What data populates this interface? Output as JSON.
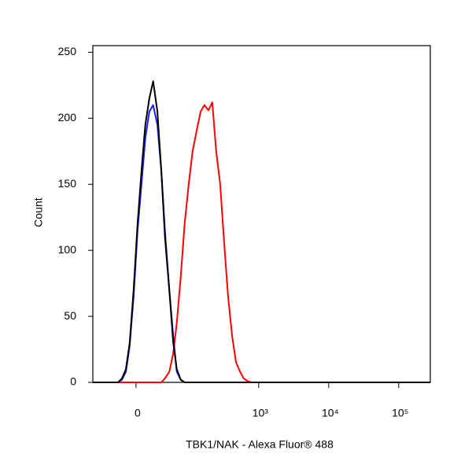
{
  "chart_data": {
    "type": "line",
    "xlabel": "TBK1/NAK - Alexa Fluor® 488",
    "ylabel": "Count",
    "xscale": "biexponential",
    "x": [
      -69,
      -22,
      -17,
      -12,
      -7.4,
      -2.8,
      1.8,
      6.4,
      11,
      16,
      21,
      27,
      33,
      39,
      47,
      55,
      63,
      73,
      84,
      97,
      111,
      127,
      146,
      166,
      190,
      216,
      246,
      281,
      321,
      365,
      417,
      475,
      542,
      610,
      695,
      790,
      283000
    ],
    "series": [
      {
        "color": "#ff0000",
        "values": [
          0,
          0,
          0,
          0,
          0,
          0,
          0,
          0,
          0,
          0,
          0,
          0,
          0,
          3,
          8,
          22,
          45,
          80,
          120,
          150,
          175,
          190,
          205,
          210,
          206,
          212,
          175,
          150,
          105,
          65,
          35,
          15,
          8,
          3,
          1,
          0,
          0
        ]
      },
      {
        "color": "#1a1aff",
        "values": [
          0,
          0,
          2,
          8,
          28,
          65,
          115,
          150,
          185,
          205,
          210,
          195,
          160,
          115,
          70,
          35,
          8,
          2,
          0,
          0,
          0,
          0,
          0,
          0,
          0,
          0,
          0,
          0,
          0,
          0,
          0,
          0,
          0,
          0,
          0,
          0,
          0
        ]
      },
      {
        "color": "#000000",
        "values": [
          0,
          0,
          3,
          10,
          30,
          70,
          120,
          160,
          195,
          215,
          228,
          205,
          160,
          110,
          70,
          30,
          10,
          2,
          0,
          0,
          0,
          0,
          0,
          0,
          0,
          0,
          0,
          0,
          0,
          0,
          0,
          0,
          0,
          0,
          0,
          0,
          0
        ]
      }
    ],
    "xlim": [
      -69,
      283000
    ],
    "xticks": [
      0,
      {
        "value": 1000,
        "label": "10³"
      },
      {
        "value": 10000,
        "label": "10⁴"
      },
      {
        "value": 100000,
        "label": "10⁵"
      }
    ],
    "ylim": [
      0,
      255
    ],
    "yticks": [
      0,
      50,
      100,
      150,
      200,
      250
    ]
  }
}
